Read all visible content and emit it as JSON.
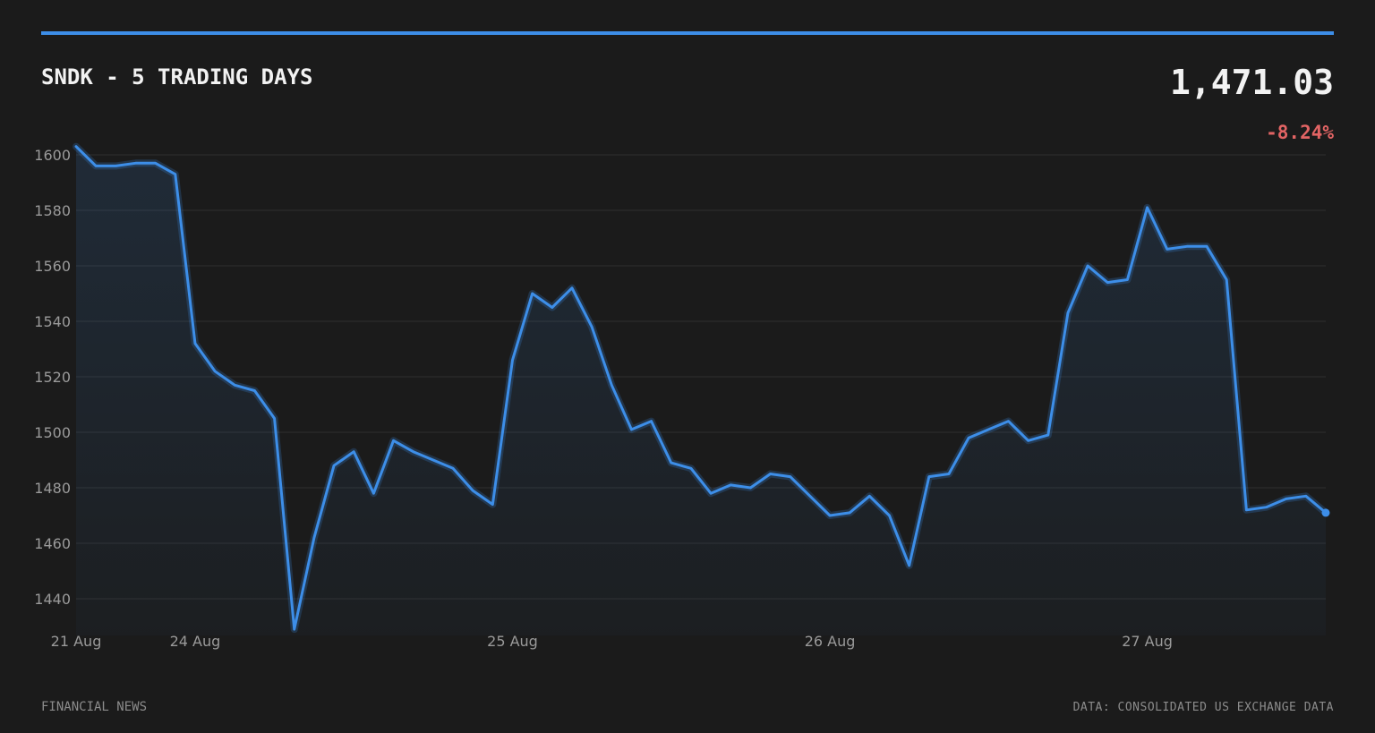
{
  "header": {
    "title": "SNDK - 5 TRADING DAYS",
    "price": "1,471.03",
    "change": "-8.24%",
    "accent_color": "#3d8ee8",
    "change_color": "#e26464"
  },
  "footer": {
    "source_left": "FINANCIAL NEWS",
    "source_right": "DATA: CONSOLIDATED US EXCHANGE DATA"
  },
  "chart_data": {
    "type": "area",
    "title": "SNDK - 5 TRADING DAYS",
    "xlabel": "",
    "ylabel": "",
    "ylim": [
      1430,
      1603
    ],
    "yticks": [
      1440,
      1460,
      1480,
      1500,
      1520,
      1540,
      1560,
      1580,
      1600
    ],
    "xtick_labels": [
      "21 Aug",
      "24 Aug",
      "25 Aug",
      "26 Aug",
      "27 Aug"
    ],
    "xtick_index": [
      0,
      6,
      22,
      38,
      54
    ],
    "grid": true,
    "legend": "none",
    "line_color": "#3d8ee8",
    "series": [
      {
        "values": [
          1603,
          1596,
          1596,
          1597,
          1597,
          1593,
          1532,
          1522,
          1517,
          1515,
          1505,
          1429,
          1462,
          1488,
          1493,
          1478,
          1497,
          1493,
          1490,
          1487,
          1479,
          1474,
          1526,
          1550,
          1545,
          1552,
          1538,
          1517,
          1501,
          1504,
          1489,
          1487,
          1478,
          1481,
          1480,
          1485,
          1484,
          1477,
          1470,
          1471,
          1477,
          1470,
          1452,
          1484,
          1485,
          1498,
          1501,
          1504,
          1497,
          1499,
          1543,
          1560,
          1554,
          1555,
          1581,
          1566,
          1567,
          1567,
          1555,
          1472,
          1473,
          1476,
          1477,
          1471
        ]
      }
    ]
  }
}
